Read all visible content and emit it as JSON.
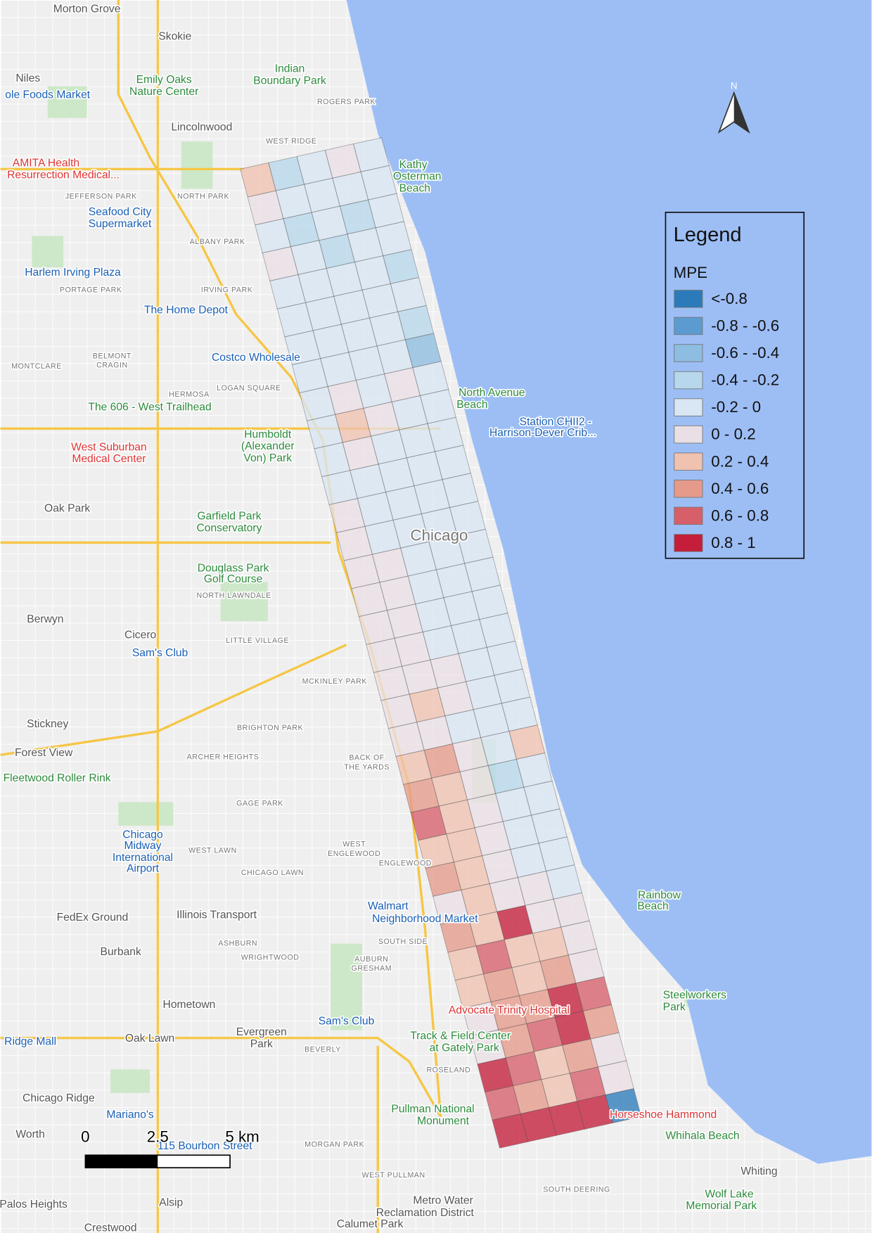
{
  "map": {
    "labels": [
      "Morton Grove",
      "Skokie",
      "Niles",
      "Emily Oaks",
      "Nature Center",
      "Indian",
      "Boundary Park",
      "ROGERS PARK",
      "Lincolnwood",
      "WEST RIDGE",
      "ole Foods Market",
      "AMITA Health",
      "Resurrection Medical...",
      "JEFFERSON PARK",
      "NORTH PARK",
      "Kathy",
      "Osterman",
      "Beach",
      "Seafood City",
      "Supermarket",
      "ALBANY PARK",
      "Harlem Irving Plaza",
      "PORTAGE PARK",
      "IRVING PARK",
      "The Home Depot",
      "BELMONT",
      "CRAGIN",
      "Costco Wholesale",
      "MONTCLARE",
      "HERMOSA",
      "LOGAN SQUARE",
      "The 606 - West Trailhead",
      "North Avenue",
      "Beach",
      "Station CHII2 -",
      "Harrison-Dever Crib...",
      "Humboldt",
      "(Alexander",
      "Von) Park",
      "West Suburban",
      "Medical Center",
      "Oak Park",
      "Garfield Park",
      "Conservatory",
      "Chicago",
      "Douglass Park",
      "Golf Course",
      "NORTH LAWNDALE",
      "Berwyn",
      "Cicero",
      "Sam's Club",
      "LITTLE VILLAGE",
      "MCKINLEY PARK",
      "Stickney",
      "BRIGHTON PARK",
      "Forest View",
      "ARCHER HEIGHTS",
      "BACK OF",
      "THE YARDS",
      "Fleetwood Roller Rink",
      "GAGE PARK",
      "Chicago",
      "Midway",
      "International",
      "Airport",
      "WEST LAWN",
      "WEST",
      "ENGLEWOOD",
      "ENGLEWOOD",
      "CHICAGO LAWN",
      "Rainbow",
      "Beach",
      "FedEx Ground",
      "Illinois Transport",
      "Walmart",
      "Neighborhood Market",
      "SOUTH SIDE",
      "ASHBURN",
      "Burbank",
      "WRIGHTWOOD",
      "AUBURN",
      "GRESHAM",
      "Steelworkers",
      "Park",
      "Hometown",
      "Advocate Trinity Hospital",
      "Sam's Club",
      "Oak Lawn",
      "Evergreen",
      "Park",
      "Track & Field Center",
      "at Gately Park",
      "Ridge Mall",
      "BEVERLY",
      "ROSELAND",
      "Chicago Ridge",
      "Pullman National",
      "Monument",
      "Mariano's",
      "Horseshoe Hammond",
      "Whihala Beach",
      "Worth",
      "115 Bourbon Street",
      "MORGAN PARK",
      "WEST PULLMAN",
      "Whiting",
      "Wolf Lake",
      "Memorial Park",
      "Metro Water",
      "Reclamation District",
      "Palos Heights",
      "Alsip",
      "Calumet Park",
      "Crestwood",
      "SOUTH DEERING"
    ],
    "north": "N",
    "scale_bar": [
      "0",
      "2.5",
      "5 km"
    ]
  },
  "legend": {
    "title": "Legend",
    "field": "MPE",
    "classes": [
      {
        "label": "<-0.8",
        "color": "#2b7bba"
      },
      {
        "label": "-0.8 - -0.6",
        "color": "#5b9bd0"
      },
      {
        "label": "-0.6 - -0.4",
        "color": "#8dbde0"
      },
      {
        "label": "-0.4 - -0.2",
        "color": "#b7d7ec"
      },
      {
        "label": "-0.2 - 0",
        "color": "#d9e6f4"
      },
      {
        "label": "0 - 0.2",
        "color": "#eadfe5"
      },
      {
        "label": "0.2 - 0.4",
        "color": "#f0c2b0"
      },
      {
        "label": "0.4 - 0.6",
        "color": "#e69a8a"
      },
      {
        "label": "0.6 - 0.8",
        "color": "#d65f6a"
      },
      {
        "label": "0.8 - 1",
        "color": "#c41e3a"
      }
    ]
  },
  "mpe_grid": {
    "rows": [
      [
        6,
        3,
        4,
        5,
        4
      ],
      [
        5,
        4,
        4,
        4,
        4
      ],
      [
        4,
        3,
        4,
        3,
        4
      ],
      [
        5,
        4,
        3,
        4,
        4
      ],
      [
        4,
        4,
        4,
        4,
        3
      ],
      [
        4,
        4,
        4,
        4,
        4
      ],
      [
        4,
        4,
        4,
        4,
        3
      ],
      [
        4,
        4,
        4,
        4,
        2
      ],
      [
        4,
        5,
        4,
        5,
        4
      ],
      [
        4,
        6,
        5,
        4,
        4
      ],
      [
        4,
        5,
        4,
        4,
        4
      ],
      [
        4,
        4,
        4,
        4,
        4
      ],
      [
        5,
        4,
        4,
        4,
        4
      ],
      [
        5,
        4,
        4,
        4,
        4
      ],
      [
        5,
        5,
        4,
        4,
        4
      ],
      [
        5,
        5,
        4,
        4,
        4
      ],
      [
        5,
        5,
        4,
        4,
        4
      ],
      [
        5,
        5,
        4,
        4,
        4
      ],
      [
        5,
        5,
        5,
        4,
        4
      ],
      [
        5,
        6,
        5,
        4,
        4
      ],
      [
        5,
        5,
        4,
        4,
        4
      ],
      [
        6,
        7,
        5,
        4,
        6
      ],
      [
        7,
        6,
        5,
        3,
        4
      ],
      [
        8,
        6,
        5,
        4,
        4
      ],
      [
        6,
        6,
        5,
        4,
        4
      ],
      [
        7,
        6,
        5,
        4,
        4
      ],
      [
        5,
        6,
        5,
        5,
        4
      ],
      [
        7,
        6,
        9,
        5,
        5
      ],
      [
        6,
        8,
        6,
        6,
        5
      ],
      [
        6,
        7,
        6,
        7,
        5
      ],
      [
        5,
        7,
        7,
        9,
        8
      ],
      [
        5,
        7,
        8,
        9,
        7
      ],
      [
        9,
        8,
        6,
        7,
        5
      ],
      [
        8,
        7,
        6,
        8,
        5
      ],
      [
        9,
        9,
        9,
        9,
        0
      ]
    ]
  }
}
